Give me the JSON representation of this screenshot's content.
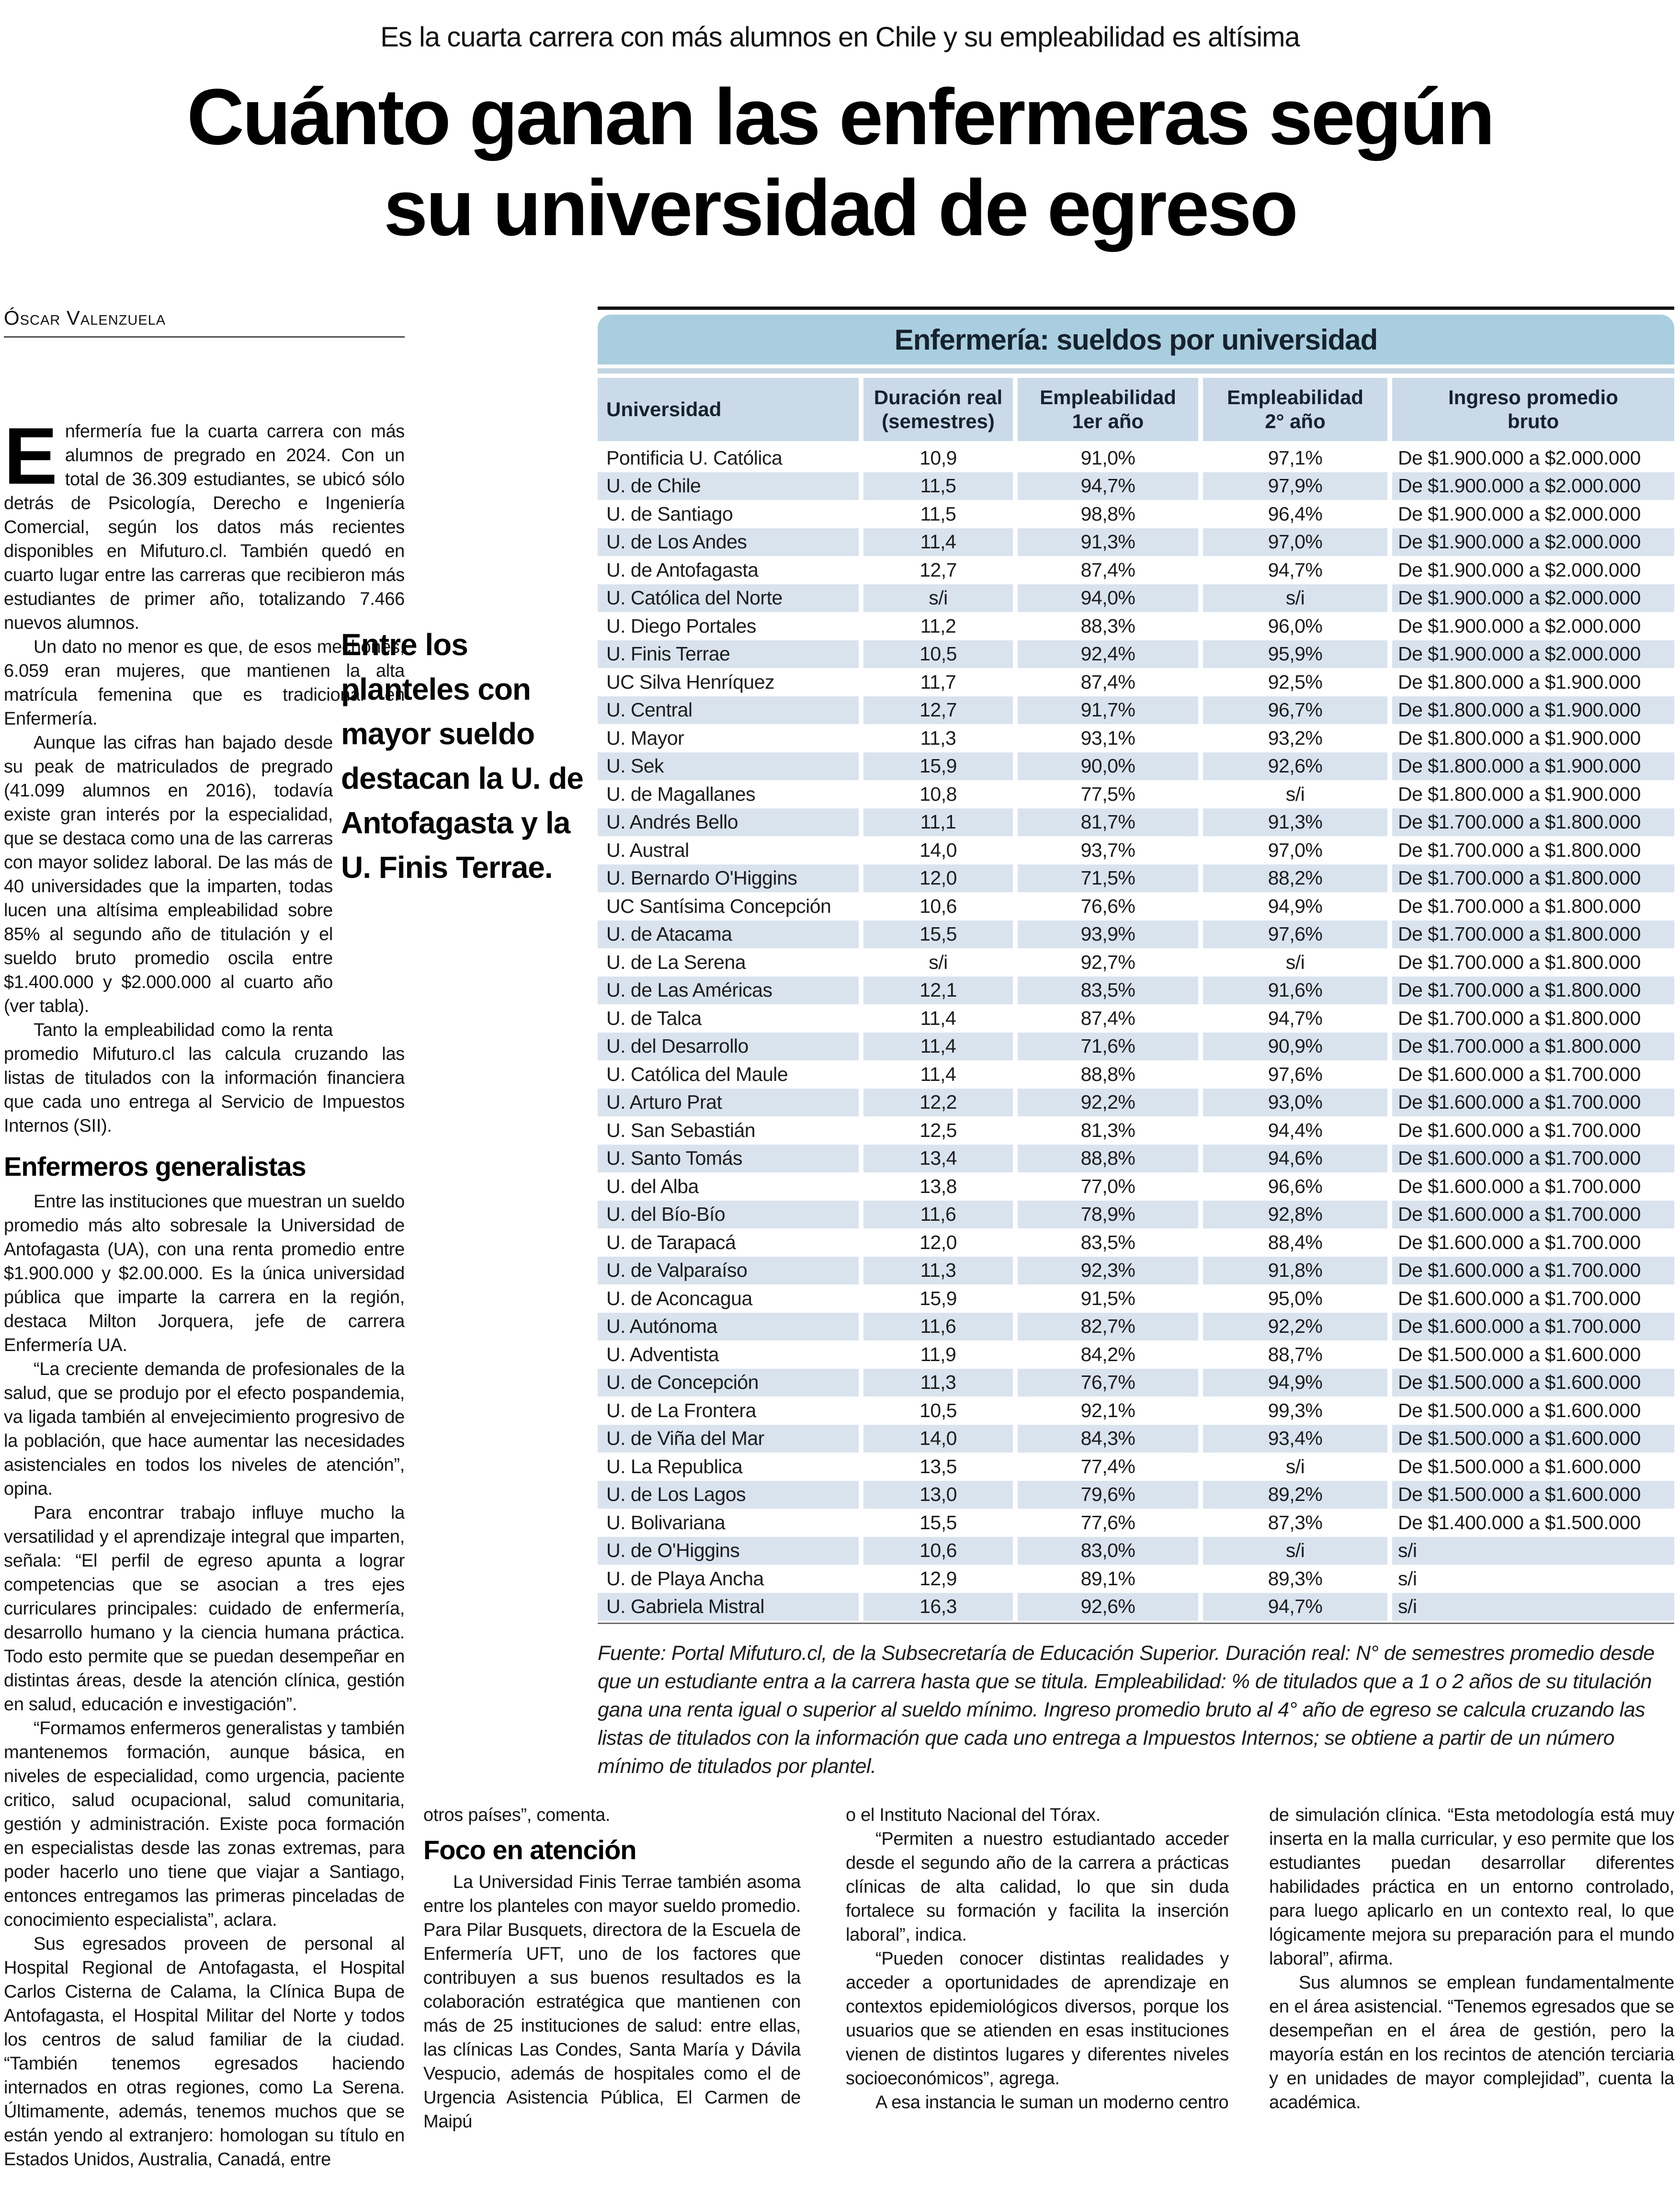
{
  "kicker": "Es la cuarta carrera con más alumnos en Chile y su empleabilidad es altísima",
  "headline": {
    "line1": "Cuánto ganan las enfermeras según",
    "line2": "su universidad de egreso"
  },
  "byline": "Óscar Valenzuela",
  "article": {
    "drop_cap": "E",
    "p1": "nfermería fue la cuarta carrera con más alumnos de pregrado en 2024. Con un total de 36.309 estudiantes, se ubicó sólo detrás de Psicología, Derecho e Ingeniería Comercial, según los datos más recientes disponibles en Mifuturo.cl. También quedó en cuarto lugar entre las carreras que recibieron más estudiantes de primer año, totalizando 7.466 nuevos alumnos.",
    "p2": "Un dato no menor es que, de esos mechones, 6.059 eran mujeres, que mantienen la alta matrícula femenina que es tradicional en Enfermería.",
    "p3": "Aunque las cifras han bajado desde su peak de matriculados de pregrado (41.099 alumnos en 2016), todavía existe gran interés por la especialidad, que se destaca como una de las carreras con mayor solidez laboral. De las más de 40 universidades que la imparten, todas lucen una altísima empleabilidad sobre 85% al segundo año de titulación y el sueldo bruto promedio oscila entre $1.400.000 y $2.000.000 al cuarto año (ver tabla).",
    "p4": "Tanto la empleabilidad como la renta promedio Mifuturo.cl las calcula cruzando las listas de titulados con la información financiera que cada uno entrega al Servicio de Impuestos Internos (SII).",
    "subhead": "Enfermeros generalistas",
    "p5": "Entre las instituciones que muestran un sueldo promedio más alto sobresale la Universidad de Antofagasta (UA), con una renta promedio entre $1.900.000 y $2.00.000. Es la única universidad pública que imparte la carrera en la región, destaca Milton Jorquera, jefe de carrera Enfermería UA.",
    "p6": "“La creciente demanda de profesionales de la salud, que se produjo por el efecto pospandemia, va ligada también al envejecimiento progresivo de la población, que hace aumentar las necesidades asistenciales en todos los niveles de atención”, opina.",
    "p7": "Para encontrar trabajo influye mucho la versatilidad y el aprendizaje integral que imparten, señala: “El perfil de egreso apunta a lograr competencias que se asocian a tres ejes curriculares principales: cuidado de enfermería, desarrollo humano y la ciencia humana práctica. Todo esto permite que se puedan desempeñar en distintas áreas, desde la atención clínica, gestión en salud, educación e investigación”.",
    "p8": "“Formamos enfermeros generalistas y también mantenemos formación, aunque básica, en niveles de especialidad, como urgencia, paciente critico, salud ocupacional, salud comunitaria, gestión y administración. Existe poca formación en especialistas desde las zonas extremas, para poder hacerlo uno tiene que viajar a Santiago, entonces entregamos las primeras pinceladas de conocimiento especialista”, aclara.",
    "p9": "Sus egresados proveen de personal al Hospital Regional de Antofagasta, el Hospital Carlos Cisterna de Calama, la Clínica Bupa de Antofagasta, el Hospital Militar del Norte y todos los centros de salud familiar de la ciudad. “También tenemos egresados haciendo internados en otras regiones, como La Serena. Últimamente, además, tenemos muchos que se están yendo al extranjero: homologan su título en Estados Unidos, Australia, Canadá, entre"
  },
  "pull_quote": "Entre los planteles con mayor sueldo destacan la U. de Antofagasta y la U. Finis Terrae.",
  "table": {
    "title": "Enfermería: sueldos por universidad",
    "columns": [
      {
        "l1": "Universidad",
        "l2": ""
      },
      {
        "l1": "Duración real",
        "l2": "(semestres)"
      },
      {
        "l1": "Empleabilidad",
        "l2": "1er año"
      },
      {
        "l1": "Empleabilidad",
        "l2": "2° año"
      },
      {
        "l1": "Ingreso promedio",
        "l2": "bruto"
      }
    ],
    "rows": [
      [
        "Pontificia U. Católica",
        "10,9",
        "91,0%",
        "97,1%",
        "De $1.900.000 a $2.000.000"
      ],
      [
        "U. de Chile",
        "11,5",
        "94,7%",
        "97,9%",
        "De $1.900.000 a $2.000.000"
      ],
      [
        "U. de Santiago",
        "11,5",
        "98,8%",
        "96,4%",
        "De $1.900.000 a $2.000.000"
      ],
      [
        "U. de Los Andes",
        "11,4",
        "91,3%",
        "97,0%",
        "De $1.900.000 a $2.000.000"
      ],
      [
        "U. de Antofagasta",
        "12,7",
        "87,4%",
        "94,7%",
        "De $1.900.000 a $2.000.000"
      ],
      [
        "U. Católica del Norte",
        "s/i",
        "94,0%",
        "s/i",
        "De $1.900.000 a $2.000.000"
      ],
      [
        "U. Diego Portales",
        "11,2",
        "88,3%",
        "96,0%",
        "De $1.900.000 a $2.000.000"
      ],
      [
        "U. Finis Terrae",
        "10,5",
        "92,4%",
        "95,9%",
        "De $1.900.000 a $2.000.000"
      ],
      [
        "UC Silva Henríquez",
        "11,7",
        "87,4%",
        "92,5%",
        "De $1.800.000 a $1.900.000"
      ],
      [
        "U. Central",
        "12,7",
        "91,7%",
        "96,7%",
        "De $1.800.000 a $1.900.000"
      ],
      [
        "U. Mayor",
        "11,3",
        "93,1%",
        "93,2%",
        "De $1.800.000 a $1.900.000"
      ],
      [
        "U. Sek",
        "15,9",
        "90,0%",
        "92,6%",
        "De $1.800.000 a $1.900.000"
      ],
      [
        "U. de Magallanes",
        "10,8",
        "77,5%",
        "s/i",
        "De $1.800.000 a $1.900.000"
      ],
      [
        "U. Andrés Bello",
        "11,1",
        "81,7%",
        "91,3%",
        "De $1.700.000 a $1.800.000"
      ],
      [
        "U. Austral",
        "14,0",
        "93,7%",
        "97,0%",
        "De $1.700.000 a $1.800.000"
      ],
      [
        "U. Bernardo O'Higgins",
        "12,0",
        "71,5%",
        "88,2%",
        "De $1.700.000 a $1.800.000"
      ],
      [
        "UC Santísima Concepción",
        "10,6",
        "76,6%",
        "94,9%",
        "De $1.700.000 a $1.800.000"
      ],
      [
        "U. de Atacama",
        "15,5",
        "93,9%",
        "97,6%",
        "De $1.700.000 a $1.800.000"
      ],
      [
        "U. de La Serena",
        "s/i",
        "92,7%",
        "s/i",
        "De $1.700.000 a $1.800.000"
      ],
      [
        "U. de Las Américas",
        "12,1",
        "83,5%",
        "91,6%",
        "De $1.700.000 a $1.800.000"
      ],
      [
        "U. de Talca",
        "11,4",
        "87,4%",
        "94,7%",
        "De $1.700.000 a $1.800.000"
      ],
      [
        "U. del Desarrollo",
        "11,4",
        "71,6%",
        "90,9%",
        "De $1.700.000 a $1.800.000"
      ],
      [
        "U. Católica del Maule",
        "11,4",
        "88,8%",
        "97,6%",
        "De $1.600.000 a $1.700.000"
      ],
      [
        "U. Arturo Prat",
        "12,2",
        "92,2%",
        "93,0%",
        "De $1.600.000 a $1.700.000"
      ],
      [
        "U. San Sebastián",
        "12,5",
        "81,3%",
        "94,4%",
        "De $1.600.000 a $1.700.000"
      ],
      [
        "U. Santo Tomás",
        "13,4",
        "88,8%",
        "94,6%",
        "De $1.600.000 a $1.700.000"
      ],
      [
        "U. del Alba",
        "13,8",
        "77,0%",
        "96,6%",
        "De $1.600.000 a $1.700.000"
      ],
      [
        "U. del Bío-Bío",
        "11,6",
        "78,9%",
        "92,8%",
        "De $1.600.000 a $1.700.000"
      ],
      [
        "U. de Tarapacá",
        "12,0",
        "83,5%",
        "88,4%",
        "De $1.600.000 a $1.700.000"
      ],
      [
        "U. de Valparaíso",
        "11,3",
        "92,3%",
        "91,8%",
        "De $1.600.000 a $1.700.000"
      ],
      [
        "U. de Aconcagua",
        "15,9",
        "91,5%",
        "95,0%",
        "De $1.600.000 a $1.700.000"
      ],
      [
        "U. Autónoma",
        "11,6",
        "82,7%",
        "92,2%",
        "De $1.600.000 a $1.700.000"
      ],
      [
        "U. Adventista",
        "11,9",
        "84,2%",
        "88,7%",
        "De $1.500.000 a $1.600.000"
      ],
      [
        "U. de Concepción",
        "11,3",
        "76,7%",
        "94,9%",
        "De $1.500.000 a $1.600.000"
      ],
      [
        "U. de La Frontera",
        "10,5",
        "92,1%",
        "99,3%",
        "De $1.500.000 a $1.600.000"
      ],
      [
        "U. de Viña del Mar",
        "14,0",
        "84,3%",
        "93,4%",
        "De $1.500.000 a $1.600.000"
      ],
      [
        "U. La Republica",
        "13,5",
        "77,4%",
        "s/i",
        "De $1.500.000 a $1.600.000"
      ],
      [
        "U. de Los Lagos",
        "13,0",
        "79,6%",
        "89,2%",
        "De $1.500.000 a $1.600.000"
      ],
      [
        "U. Bolivariana",
        "15,5",
        "77,6%",
        "87,3%",
        "De $1.400.000 a $1.500.000"
      ],
      [
        "U. de O'Higgins",
        "10,6",
        "83,0%",
        "s/i",
        "s/i"
      ],
      [
        "U. de Playa Ancha",
        "12,9",
        "89,1%",
        "89,3%",
        "s/i"
      ],
      [
        "U. Gabriela Mistral",
        "16,3",
        "92,6%",
        "94,7%",
        "s/i"
      ]
    ],
    "source_note": "Fuente: Portal Mifuturo.cl, de la Subsecretaría de Educación Superior. Duración real: N° de semestres promedio desde que un estudiante entra a la carrera hasta que se titula. Empleabilidad: % de titulados que a 1 o 2 años de su titulación gana una renta igual o superior al sueldo mínimo. Ingreso promedio bruto al 4° año de egreso se calcula cruzando las listas de titulados con la información que cada uno entrega a Impuestos Internos; se obtiene a partir de un número mínimo de titulados por plantel."
  },
  "bottom": {
    "col2_p1": "otros países”, comenta.",
    "col2_subhead": "Foco en atención",
    "col2_p2": "La Universidad Finis Terrae también asoma entre los planteles con mayor sueldo promedio. Para Pilar Busquets, directora de la Escuela de Enfermería UFT, uno de los factores que contribuyen a sus buenos resultados es la colaboración estratégica que mantienen con más de 25 instituciones de salud: entre ellas, las clínicas Las Condes, Santa María y Dávila Vespucio, además de hospitales como el de Urgencia Asistencia Pública, El Carmen de Maipú",
    "col3_p1": "o el Instituto Nacional del Tórax.",
    "col3_p2": "“Permiten a nuestro estudiantado acceder desde el segundo año de la carrera a prácticas clínicas de alta calidad, lo que sin duda fortalece su formación y facilita la inserción laboral”, indica.",
    "col3_p3": "“Pueden conocer distintas realidades y acceder a oportunidades de aprendizaje en contextos epidemiológicos diversos, porque los usuarios que se atienden en esas instituciones vienen de distintos lugares y diferentes niveles socioeconómicos”, agrega.",
    "col3_p4": "A esa instancia le suman un moderno centro",
    "col4_p1": "de simulación clínica. “Esta metodología está muy inserta en la malla curricular, y eso permite que los estudiantes puedan desarrollar diferentes habilidades práctica en un entorno controlado, para luego aplicarlo en un contexto real, lo que lógicamente mejora su preparación para el mundo laboral”, afirma.",
    "col4_p2": "Sus alumnos se emplean fundamentalmente en el área asistencial. “Tenemos egresados que se desempeñan en el área de gestión, pero la mayoría están en los recintos de atención terciaria y en unidades de mayor complejidad”, cuenta la académica."
  },
  "colors": {
    "title_band": "#a9cedf",
    "header_band": "#cbdae8",
    "row_stripe": "#d9e3ee",
    "rule_band": "#c3d4e2",
    "top_rule": "#141414"
  }
}
